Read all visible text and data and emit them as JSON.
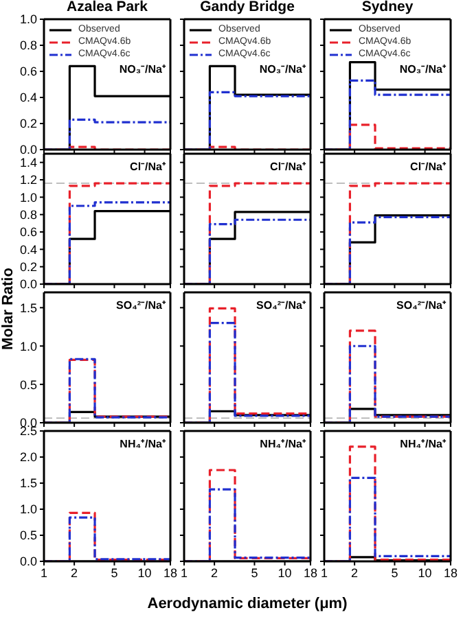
{
  "chart_data": [
    {
      "type": "step",
      "title": "Azalea Park",
      "x": [
        1,
        1.8,
        3.2,
        18
      ],
      "xlim": [
        1,
        18
      ],
      "xticks": [
        1,
        2,
        5,
        10,
        18
      ],
      "log": "x",
      "ylim": [
        0,
        1.0
      ],
      "yticks": [
        {
          "value": 0,
          "label": "0.0"
        },
        {
          "value": 0.2,
          "label": "0.2"
        },
        {
          "value": 0.4,
          "label": "0.4"
        },
        {
          "value": 0.6,
          "label": "0.6"
        },
        {
          "value": 0.8,
          "label": "0.8"
        },
        {
          "value": 1.0,
          "label": "1.0"
        }
      ],
      "tick_labels": "y",
      "legend": "top left",
      "annotations": [
        "NO₃⁻/Na⁺"
      ],
      "series": [
        {
          "name": "Observed",
          "color": "#000000",
          "line_style": "solid",
          "values": [
            0,
            0.64,
            0.41,
            0.41
          ]
        },
        {
          "name": "CMAQv4.6b",
          "color": "#e8202a",
          "line_style": "dashed",
          "values": [
            0,
            0.02,
            0,
            0
          ]
        },
        {
          "name": "CMAQv4.6c",
          "color": "#2030d0",
          "line_style": "dashdot",
          "values": [
            0,
            0.23,
            0.21,
            0.21
          ]
        }
      ]
    },
    {
      "type": "step",
      "title": "Gandy Bridge",
      "x": [
        1,
        1.8,
        3.2,
        18
      ],
      "xlim": [
        1,
        18
      ],
      "xticks": [
        1,
        2,
        5,
        10,
        18
      ],
      "log": "x",
      "ylim": [
        0,
        1.0
      ],
      "yticks": [
        0,
        0.2,
        0.4,
        0.6,
        0.8,
        1.0
      ],
      "tick_labels": false,
      "legend": "top left",
      "annotations": [
        "NO₃⁻/Na⁺"
      ],
      "series": [
        {
          "name": "Observed",
          "color": "#000000",
          "line_style": "solid",
          "values": [
            0,
            0.64,
            0.42,
            0.42
          ]
        },
        {
          "name": "CMAQv4.6b",
          "color": "#e8202a",
          "line_style": "dashed",
          "values": [
            0,
            0.02,
            0,
            0
          ]
        },
        {
          "name": "CMAQv4.6c",
          "color": "#2030d0",
          "line_style": "dashdot",
          "values": [
            0,
            0.44,
            0.41,
            0.41
          ]
        }
      ]
    },
    {
      "type": "step",
      "title": "Sydney",
      "x": [
        1,
        1.8,
        3.2,
        18
      ],
      "xlim": [
        1,
        18
      ],
      "xticks": [
        1,
        2,
        5,
        10,
        18
      ],
      "log": "x",
      "ylim": [
        0,
        1.0
      ],
      "yticks": [
        0,
        0.2,
        0.4,
        0.6,
        0.8,
        1.0
      ],
      "tick_labels": false,
      "legend": "top left",
      "annotations": [
        "NO₃⁻/Na⁺"
      ],
      "series": [
        {
          "name": "Observed",
          "color": "#000000",
          "line_style": "solid",
          "values": [
            0,
            0.67,
            0.46,
            0.46
          ]
        },
        {
          "name": "CMAQv4.6b",
          "color": "#e8202a",
          "line_style": "dashed",
          "values": [
            0,
            0.19,
            0.01,
            0.01
          ]
        },
        {
          "name": "CMAQv4.6c",
          "color": "#2030d0",
          "line_style": "dashdot",
          "values": [
            0,
            0.53,
            0.42,
            0.42
          ]
        }
      ]
    },
    {
      "type": "step",
      "x": [
        1,
        1.8,
        3.2,
        18
      ],
      "xlim": [
        1,
        18
      ],
      "xticks": [
        1,
        2,
        5,
        10,
        18
      ],
      "log": "x",
      "ylim": [
        0,
        1.5
      ],
      "yticks": [
        {
          "value": 0,
          "label": "0.0"
        },
        {
          "value": 0.2,
          "label": "0.2"
        },
        {
          "value": 0.4,
          "label": "0.4"
        },
        {
          "value": 0.6,
          "label": "0.6"
        },
        {
          "value": 0.8,
          "label": "0.8"
        },
        {
          "value": 1.0,
          "label": "1.0"
        },
        {
          "value": 1.2,
          "label": "1.2"
        },
        {
          "value": 1.4,
          "label": "1.4"
        }
      ],
      "tick_labels": "y",
      "annotations": [
        "Cl⁻/Na⁺"
      ],
      "ref_lines": [
        {
          "axis": "y",
          "value": 1.16,
          "color": "#aaaaaa",
          "line_style": "dashed"
        }
      ],
      "series": [
        {
          "color": "#000000",
          "line_style": "solid",
          "values": [
            0,
            0.52,
            0.84,
            0.84
          ]
        },
        {
          "color": "#e8202a",
          "line_style": "dashed",
          "values": [
            0,
            1.13,
            1.16,
            1.16
          ]
        },
        {
          "color": "#2030d0",
          "line_style": "dashdot",
          "values": [
            0,
            0.9,
            0.94,
            0.94
          ]
        }
      ]
    },
    {
      "type": "step",
      "x": [
        1,
        1.8,
        3.2,
        18
      ],
      "xlim": [
        1,
        18
      ],
      "xticks": [
        1,
        2,
        5,
        10,
        18
      ],
      "log": "x",
      "ylim": [
        0,
        1.5
      ],
      "yticks": [
        0,
        0.2,
        0.4,
        0.6,
        0.8,
        1.0,
        1.2,
        1.4
      ],
      "tick_labels": false,
      "annotations": [
        "Cl⁻/Na⁺"
      ],
      "ref_lines": [
        {
          "axis": "y",
          "value": 1.16,
          "color": "#aaaaaa",
          "line_style": "dashed"
        }
      ],
      "series": [
        {
          "color": "#000000",
          "line_style": "solid",
          "values": [
            0,
            0.52,
            0.83,
            0.83
          ]
        },
        {
          "color": "#e8202a",
          "line_style": "dashed",
          "values": [
            0,
            1.13,
            1.16,
            1.16
          ]
        },
        {
          "color": "#2030d0",
          "line_style": "dashdot",
          "values": [
            0,
            0.69,
            0.74,
            0.74
          ]
        }
      ]
    },
    {
      "type": "step",
      "x": [
        1,
        1.8,
        3.2,
        18
      ],
      "xlim": [
        1,
        18
      ],
      "xticks": [
        1,
        2,
        5,
        10,
        18
      ],
      "log": "x",
      "ylim": [
        0,
        1.5
      ],
      "yticks": [
        0,
        0.2,
        0.4,
        0.6,
        0.8,
        1.0,
        1.2,
        1.4
      ],
      "tick_labels": false,
      "annotations": [
        "Cl⁻/Na⁺"
      ],
      "ref_lines": [
        {
          "axis": "y",
          "value": 1.16,
          "color": "#aaaaaa",
          "line_style": "dashed"
        }
      ],
      "series": [
        {
          "color": "#000000",
          "line_style": "solid",
          "values": [
            0,
            0.48,
            0.79,
            0.79
          ]
        },
        {
          "color": "#e8202a",
          "line_style": "dashed",
          "values": [
            0,
            1.13,
            1.16,
            1.16
          ]
        },
        {
          "color": "#2030d0",
          "line_style": "dashdot",
          "values": [
            0,
            0.71,
            0.77,
            0.77
          ]
        }
      ]
    },
    {
      "type": "step",
      "ylabel": "Molar Ratio",
      "x": [
        1,
        1.8,
        3.2,
        18
      ],
      "xlim": [
        1,
        18
      ],
      "xticks": [
        1,
        2,
        5,
        10,
        18
      ],
      "log": "x",
      "ylim": [
        0,
        1.7
      ],
      "yticks": [
        {
          "value": 0,
          "label": "0.0"
        },
        {
          "value": 0.5,
          "label": "0.5"
        },
        {
          "value": 1.0,
          "label": "1.0"
        },
        {
          "value": 1.5,
          "label": "1.5"
        }
      ],
      "tick_labels": "y",
      "annotations": [
        "SO₄²⁻/Na⁺"
      ],
      "ref_lines": [
        {
          "axis": "y",
          "value": 0.06,
          "color": "#aaaaaa",
          "line_style": "dashed"
        }
      ],
      "series": [
        {
          "color": "#000000",
          "line_style": "solid",
          "values": [
            0,
            0.14,
            0.08,
            0.08
          ]
        },
        {
          "color": "#e8202a",
          "line_style": "dashed",
          "values": [
            0,
            0.82,
            0.08,
            0.08
          ]
        },
        {
          "color": "#2030d0",
          "line_style": "dashdot",
          "values": [
            0,
            0.83,
            0.07,
            0.07
          ]
        }
      ]
    },
    {
      "type": "step",
      "x": [
        1,
        1.8,
        3.2,
        18
      ],
      "xlim": [
        1,
        18
      ],
      "xticks": [
        1,
        2,
        5,
        10,
        18
      ],
      "log": "x",
      "ylim": [
        0,
        1.7
      ],
      "yticks": [
        0,
        0.5,
        1.0,
        1.5
      ],
      "tick_labels": false,
      "annotations": [
        "SO₄²⁻/Na⁺"
      ],
      "ref_lines": [
        {
          "axis": "y",
          "value": 0.06,
          "color": "#aaaaaa",
          "line_style": "dashed"
        }
      ],
      "series": [
        {
          "color": "#000000",
          "line_style": "solid",
          "values": [
            0,
            0.15,
            0.1,
            0.1
          ]
        },
        {
          "color": "#e8202a",
          "line_style": "dashed",
          "values": [
            0,
            1.49,
            0.12,
            0.12
          ]
        },
        {
          "color": "#2030d0",
          "line_style": "dashdot",
          "values": [
            0,
            1.3,
            0.09,
            0.09
          ]
        }
      ]
    },
    {
      "type": "step",
      "x": [
        1,
        1.8,
        3.2,
        18
      ],
      "xlim": [
        1,
        18
      ],
      "xticks": [
        1,
        2,
        5,
        10,
        18
      ],
      "log": "x",
      "ylim": [
        0,
        1.7
      ],
      "yticks": [
        0,
        0.5,
        1.0,
        1.5
      ],
      "tick_labels": false,
      "annotations": [
        "SO₄²⁻/Na⁺"
      ],
      "ref_lines": [
        {
          "axis": "y",
          "value": 0.06,
          "color": "#aaaaaa",
          "line_style": "dashed"
        }
      ],
      "series": [
        {
          "color": "#000000",
          "line_style": "solid",
          "values": [
            0,
            0.18,
            0.1,
            0.1
          ]
        },
        {
          "color": "#e8202a",
          "line_style": "dashed",
          "values": [
            0,
            1.2,
            0.08,
            0.08
          ]
        },
        {
          "color": "#2030d0",
          "line_style": "dashdot",
          "values": [
            0,
            1.0,
            0.08,
            0.08
          ]
        }
      ]
    },
    {
      "type": "step",
      "x": [
        1,
        1.8,
        3.2,
        18
      ],
      "xlim": [
        1,
        18
      ],
      "xticks": [
        1,
        2,
        5,
        10,
        18
      ],
      "log": "x",
      "ylim": [
        0,
        2.5
      ],
      "yticks": [
        {
          "value": 0,
          "label": "0.0"
        },
        {
          "value": 0.5,
          "label": "0.5"
        },
        {
          "value": 1.0,
          "label": "1.0"
        },
        {
          "value": 1.5,
          "label": "1.5"
        },
        {
          "value": 2.0,
          "label": "2.0"
        },
        {
          "value": 2.5,
          "label": "2.5"
        }
      ],
      "annotations": [
        "NH₄⁺/Na⁺"
      ],
      "series": [
        {
          "color": "#000000",
          "line_style": "solid",
          "values": [
            0,
            0,
            0,
            0
          ]
        },
        {
          "color": "#e8202a",
          "line_style": "dashed",
          "values": [
            0,
            0.93,
            0.03,
            0.03
          ]
        },
        {
          "color": "#2030d0",
          "line_style": "dashdot",
          "values": [
            0,
            0.84,
            0.04,
            0.04
          ]
        }
      ]
    },
    {
      "type": "step",
      "xlabel": "Aerodynamic diameter (μm)",
      "x": [
        1,
        1.8,
        3.2,
        18
      ],
      "xlim": [
        1,
        18
      ],
      "xticks": [
        1,
        2,
        5,
        10,
        18
      ],
      "log": "x",
      "ylim": [
        0,
        2.5
      ],
      "yticks": [
        0,
        0.5,
        1.0,
        1.5,
        2.0,
        2.5
      ],
      "tick_labels": "x",
      "annotations": [
        "NH₄⁺/Na⁺"
      ],
      "series": [
        {
          "color": "#000000",
          "line_style": "solid",
          "values": [
            0,
            0,
            0,
            0
          ]
        },
        {
          "color": "#e8202a",
          "line_style": "dashed",
          "values": [
            0,
            1.75,
            0.06,
            0.06
          ]
        },
        {
          "color": "#2030d0",
          "line_style": "dashdot",
          "values": [
            0,
            1.38,
            0.07,
            0.07
          ]
        }
      ]
    },
    {
      "type": "step",
      "x": [
        1,
        1.8,
        3.2,
        18
      ],
      "xlim": [
        1,
        18
      ],
      "xticks": [
        1,
        2,
        5,
        10,
        18
      ],
      "log": "x",
      "ylim": [
        0,
        2.5
      ],
      "yticks": [
        0,
        0.5,
        1.0,
        1.5,
        2.0,
        2.5
      ],
      "tick_labels": "x",
      "annotations": [
        "NH₄⁺/Na⁺"
      ],
      "series": [
        {
          "color": "#000000",
          "line_style": "solid",
          "values": [
            0,
            0.08,
            0.02,
            0.02
          ]
        },
        {
          "color": "#e8202a",
          "line_style": "dashed",
          "values": [
            0,
            2.2,
            0.03,
            0.03
          ]
        },
        {
          "color": "#2030d0",
          "line_style": "dashdot",
          "values": [
            0,
            1.6,
            0.1,
            0.1
          ]
        }
      ]
    }
  ]
}
